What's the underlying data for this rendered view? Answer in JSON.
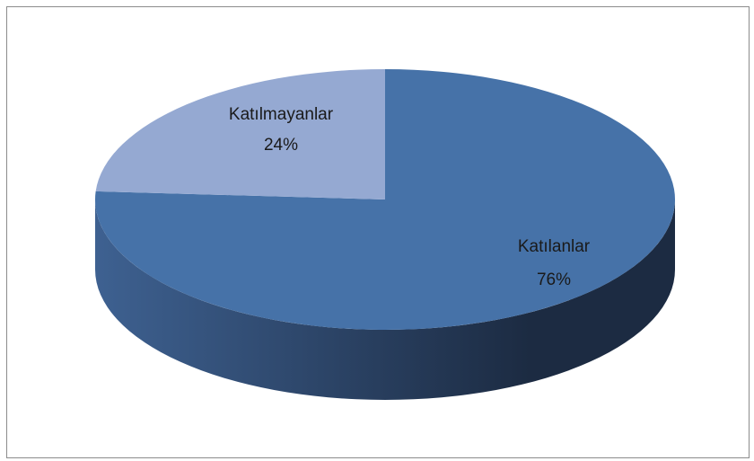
{
  "chart_data": {
    "type": "pie3d",
    "categories": [
      "Katılanlar",
      "Katılmayanlar"
    ],
    "values": [
      76,
      24
    ],
    "value_labels": [
      "76%",
      "24%"
    ],
    "colors": [
      "#4672a8",
      "#95a9d2"
    ],
    "side_color": [
      "#3e6191",
      "#1c2b42"
    ]
  }
}
